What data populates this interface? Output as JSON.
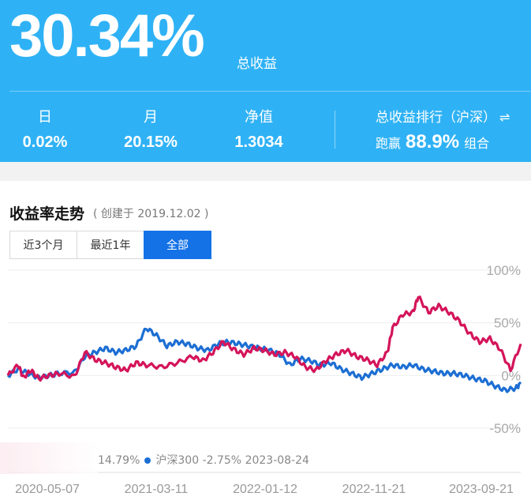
{
  "summary": {
    "total_return": "30.34%",
    "total_return_label": "总收益",
    "stats": [
      {
        "label": "日",
        "value": "0.02%"
      },
      {
        "label": "月",
        "value": "20.15%"
      },
      {
        "label": "净值",
        "value": "1.3034"
      }
    ],
    "rank": {
      "label": "总收益排行（沪深）",
      "swap_icon": "⇌",
      "prefix": "跑赢",
      "percent": "88.9%",
      "suffix": "组合"
    }
  },
  "trend": {
    "title": "收益率走势",
    "created": "( 创建于 2019.12.02 )",
    "tabs": [
      {
        "label": "近3个月",
        "active": false
      },
      {
        "label": "最近1年",
        "active": false
      },
      {
        "label": "全部",
        "active": true
      }
    ],
    "legend": {
      "portfolio_value": "14.79%",
      "index_name": "沪深300",
      "index_value": "-2.75%",
      "date": "2023-08-24"
    }
  },
  "colors": {
    "header_bg": "#2fb2f5",
    "portfolio_line": "#d4145a",
    "index_line": "#1c6ed3",
    "active_tab": "#1472e6"
  },
  "chart_data": {
    "type": "line",
    "ylim": [
      -50,
      100
    ],
    "y_ticks": [
      "100%",
      "50%",
      "0%",
      "-50%"
    ],
    "x_ticks": [
      "2020-05-07",
      "2021-03-11",
      "2022-01-12",
      "2022-11-21",
      "2023-09-21"
    ],
    "grid": true,
    "series": [
      {
        "name": "portfolio",
        "points": [
          [
            0,
            0
          ],
          [
            0.02,
            10
          ],
          [
            0.03,
            -2
          ],
          [
            0.045,
            5
          ],
          [
            0.06,
            -3
          ],
          [
            0.08,
            0
          ],
          [
            0.1,
            2
          ],
          [
            0.13,
            -1
          ],
          [
            0.15,
            22
          ],
          [
            0.17,
            15
          ],
          [
            0.19,
            12
          ],
          [
            0.21,
            8
          ],
          [
            0.23,
            5
          ],
          [
            0.25,
            12
          ],
          [
            0.27,
            10
          ],
          [
            0.3,
            8
          ],
          [
            0.33,
            12
          ],
          [
            0.36,
            18
          ],
          [
            0.38,
            14
          ],
          [
            0.4,
            22
          ],
          [
            0.42,
            32
          ],
          [
            0.44,
            25
          ],
          [
            0.46,
            20
          ],
          [
            0.48,
            26
          ],
          [
            0.5,
            24
          ],
          [
            0.52,
            20
          ],
          [
            0.54,
            22
          ],
          [
            0.56,
            18
          ],
          [
            0.58,
            8
          ],
          [
            0.6,
            5
          ],
          [
            0.62,
            14
          ],
          [
            0.64,
            20
          ],
          [
            0.66,
            24
          ],
          [
            0.68,
            18
          ],
          [
            0.7,
            15
          ],
          [
            0.72,
            10
          ],
          [
            0.74,
            22
          ],
          [
            0.75,
            45
          ],
          [
            0.77,
            58
          ],
          [
            0.79,
            60
          ],
          [
            0.8,
            75
          ],
          [
            0.82,
            60
          ],
          [
            0.84,
            66
          ],
          [
            0.86,
            60
          ],
          [
            0.88,
            52
          ],
          [
            0.9,
            40
          ],
          [
            0.92,
            32
          ],
          [
            0.94,
            35
          ],
          [
            0.96,
            25
          ],
          [
            0.98,
            5
          ],
          [
            1,
            30
          ]
        ]
      },
      {
        "name": "沪深300",
        "points": [
          [
            0,
            0
          ],
          [
            0.02,
            6
          ],
          [
            0.04,
            2
          ],
          [
            0.06,
            -2
          ],
          [
            0.08,
            0
          ],
          [
            0.1,
            2
          ],
          [
            0.13,
            3
          ],
          [
            0.15,
            18
          ],
          [
            0.17,
            22
          ],
          [
            0.19,
            26
          ],
          [
            0.21,
            22
          ],
          [
            0.23,
            24
          ],
          [
            0.25,
            28
          ],
          [
            0.27,
            45
          ],
          [
            0.29,
            38
          ],
          [
            0.31,
            28
          ],
          [
            0.33,
            32
          ],
          [
            0.35,
            30
          ],
          [
            0.37,
            26
          ],
          [
            0.39,
            24
          ],
          [
            0.41,
            30
          ],
          [
            0.43,
            32
          ],
          [
            0.45,
            30
          ],
          [
            0.47,
            28
          ],
          [
            0.49,
            26
          ],
          [
            0.51,
            24
          ],
          [
            0.53,
            20
          ],
          [
            0.55,
            10
          ],
          [
            0.57,
            16
          ],
          [
            0.59,
            14
          ],
          [
            0.61,
            10
          ],
          [
            0.63,
            12
          ],
          [
            0.65,
            6
          ],
          [
            0.67,
            2
          ],
          [
            0.69,
            -2
          ],
          [
            0.71,
            2
          ],
          [
            0.73,
            6
          ],
          [
            0.75,
            10
          ],
          [
            0.77,
            8
          ],
          [
            0.79,
            10
          ],
          [
            0.81,
            6
          ],
          [
            0.83,
            4
          ],
          [
            0.85,
            2
          ],
          [
            0.87,
            2
          ],
          [
            0.89,
            0
          ],
          [
            0.91,
            -3
          ],
          [
            0.93,
            -5
          ],
          [
            0.95,
            -10
          ],
          [
            0.97,
            -14
          ],
          [
            0.99,
            -12
          ],
          [
            1,
            -8
          ]
        ]
      }
    ]
  }
}
